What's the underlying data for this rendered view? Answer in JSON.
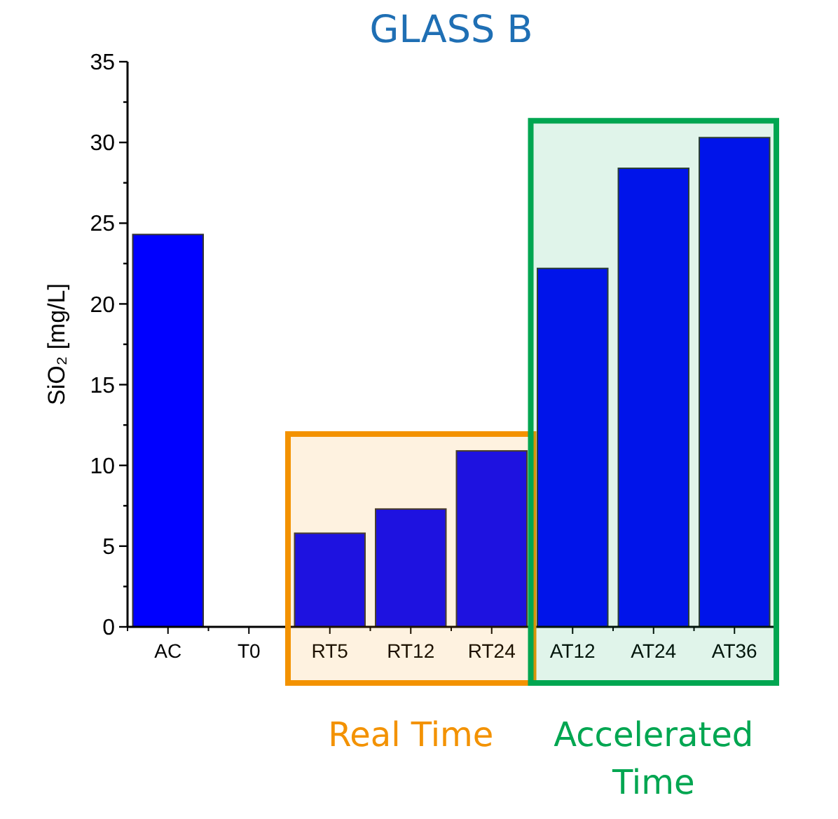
{
  "chart_data": {
    "type": "bar",
    "title": "GLASS B",
    "ylabel": "SiO₂ [mg/L]",
    "categories": [
      "AC",
      "T0",
      "RT5",
      "RT12",
      "RT24",
      "AT12",
      "AT24",
      "AT36"
    ],
    "values": [
      24.3,
      null,
      5.8,
      7.3,
      10.9,
      22.2,
      28.4,
      30.3
    ],
    "color": "#0000ff",
    "ylim": [
      0,
      35
    ],
    "yticks": [
      0,
      {
        "value": 2.5,
        "label": null
      },
      5,
      {
        "value": 7.5,
        "label": null
      },
      10,
      {
        "value": 12.5,
        "label": null
      },
      15,
      {
        "value": 17.5,
        "label": null
      },
      20,
      {
        "value": 22.5,
        "label": null
      },
      25,
      {
        "value": 27.5,
        "label": null
      },
      30,
      {
        "value": 32.5,
        "label": null
      },
      35
    ],
    "grid": false,
    "bands": [
      {
        "axis": "x",
        "from": "RT5",
        "to": "RT24",
        "label": "Real Time",
        "color": "#f39200"
      },
      {
        "axis": "x",
        "from": "AT12",
        "to": "AT36",
        "label": "Accelerated Time",
        "color": "#00a651"
      }
    ]
  }
}
